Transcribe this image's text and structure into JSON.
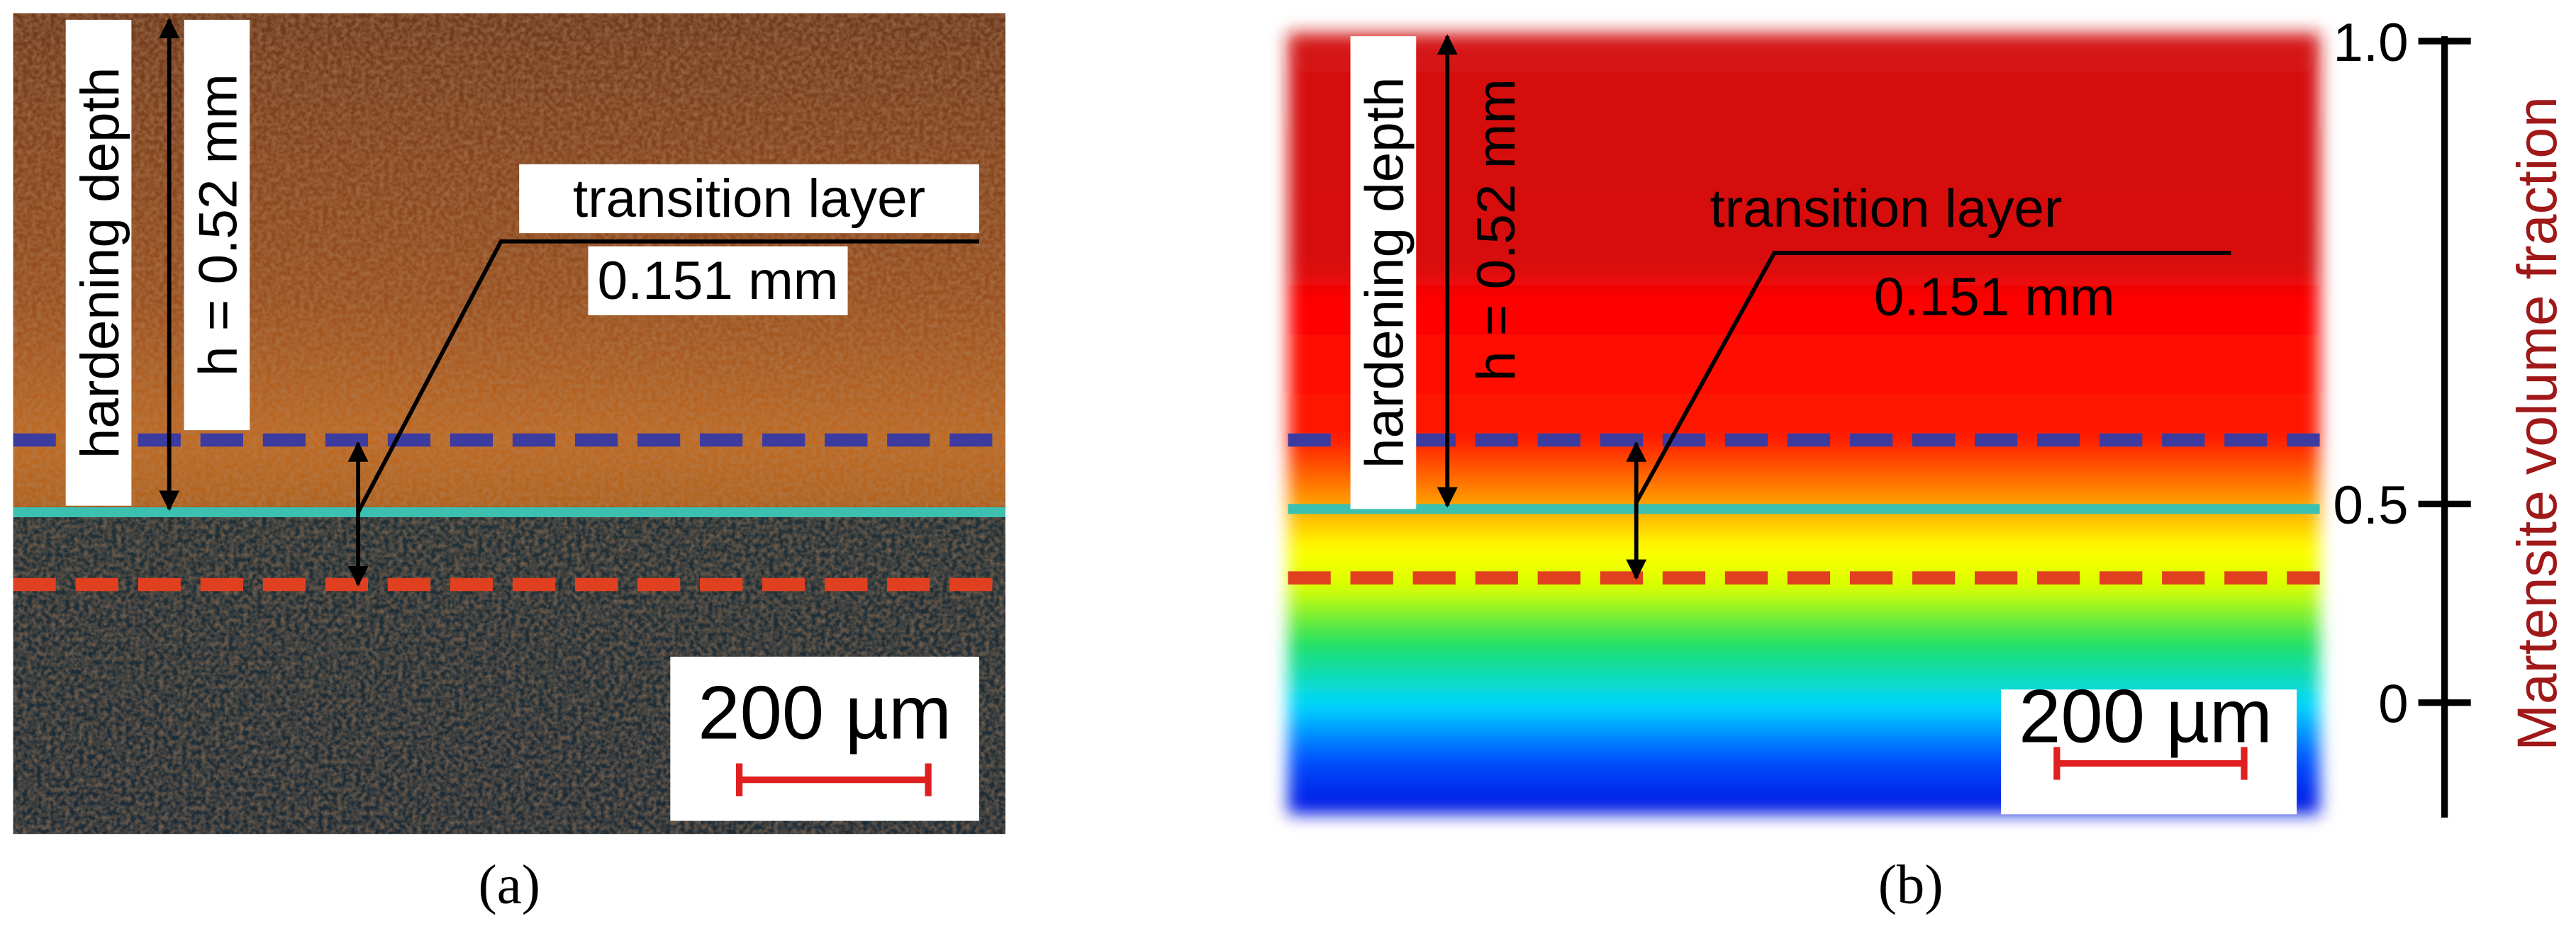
{
  "panel_a": {
    "caption": "(a)",
    "hardening_depth": "hardening depth",
    "depth": "h = 0.52 mm",
    "transition": "transition layer",
    "transition_width": "0.151 mm",
    "scale_bar": "200 µm"
  },
  "panel_b": {
    "caption": "(b)",
    "hardening_depth": "hardening depth",
    "depth": "h = 0.52 mm",
    "transition": "transition layer",
    "transition_width": "0.151 mm",
    "scale_bar": "200 µm",
    "colorbar": {
      "title": "Martensite volume fraction",
      "ticks": [
        "1.0",
        "0.5",
        "0"
      ]
    }
  }
}
